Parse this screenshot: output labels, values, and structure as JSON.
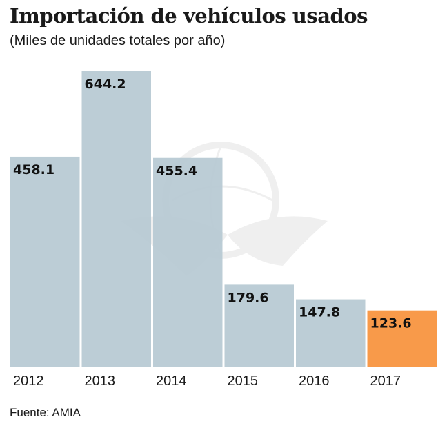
{
  "chart_data": {
    "type": "bar",
    "title": "Importación de vehículos usados",
    "subtitle": "(Miles de unidades totales por año)",
    "xlabel": "",
    "ylabel": "",
    "categories": [
      "2012",
      "2013",
      "2014",
      "2015",
      "2016",
      "2017"
    ],
    "values": [
      458.1,
      644.2,
      455.4,
      179.6,
      147.8,
      123.6
    ],
    "data_labels": [
      "458.1",
      "644.2",
      "455.4",
      "179.6",
      "147.8",
      "123.6"
    ],
    "ylim": [
      0,
      644.2
    ],
    "grid": false,
    "legend": "none",
    "colors": {
      "default": "#b6c9d3",
      "highlight": "#f89a4a",
      "highlight_index": 5
    },
    "source": "Fuente: AMIA"
  }
}
